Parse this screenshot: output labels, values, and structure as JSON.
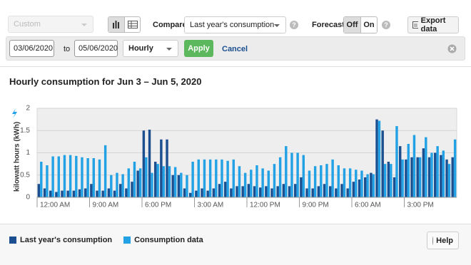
{
  "toolbar": {
    "range": "Custom",
    "compare_label": "Compare",
    "compare_value": "Last year's consumption",
    "compare_help": "?",
    "forecast_label": "Forecast",
    "forecast_off": "Off",
    "forecast_on": "On",
    "forecast_help": "?",
    "export": "Export data"
  },
  "filter": {
    "from": "03/06/2020",
    "to_label": "to",
    "to": "05/06/2020",
    "interval": "Hourly",
    "apply": "Apply",
    "cancel": "Cancel"
  },
  "help": "Help",
  "chart_data": {
    "type": "bar",
    "title": "Hourly consumption for Jun 3 – Jun 5, 2020",
    "y_label": "kilowatt hours (kWh)",
    "categories": [
      "12:00 AM",
      null,
      null,
      null,
      null,
      null,
      null,
      null,
      null,
      "9:00 AM",
      null,
      null,
      null,
      null,
      null,
      null,
      null,
      null,
      "6:00 PM",
      null,
      null,
      null,
      null,
      null,
      null,
      null,
      null,
      "3:00 AM",
      null,
      null,
      null,
      null,
      null,
      null,
      null,
      null,
      "12:00 PM",
      null,
      null,
      null,
      null,
      null,
      null,
      null,
      null,
      "9:00 PM",
      null,
      null,
      null,
      null,
      null,
      null,
      null,
      null,
      "6:00 AM",
      null,
      null,
      null,
      null,
      null,
      null,
      null,
      null,
      "3:00 PM",
      null,
      null,
      null,
      null,
      null,
      null,
      null,
      null
    ],
    "series": [
      {
        "name": "Last year's consumption",
        "color": "#1c4f8f",
        "values": [
          0.3,
          0.2,
          0.15,
          0.12,
          0.15,
          0.15,
          0.15,
          0.18,
          0.2,
          0.3,
          0.15,
          0.15,
          0.2,
          0.15,
          0.3,
          0.2,
          0.35,
          0.6,
          1.5,
          1.52,
          0.8,
          1.3,
          1.3,
          0.5,
          0.5,
          0.2,
          0.1,
          0.15,
          0.2,
          0.15,
          0.2,
          0.3,
          0.35,
          0.2,
          0.25,
          0.25,
          0.3,
          0.25,
          0.22,
          0.25,
          0.2,
          0.25,
          0.3,
          0.25,
          0.3,
          0.45,
          0.2,
          0.2,
          0.25,
          0.3,
          0.25,
          0.2,
          0.3,
          0.2,
          0.35,
          0.4,
          0.45,
          0.55,
          1.75,
          1.5,
          0.8,
          0.45,
          1.15,
          0.85,
          0.9,
          0.9,
          1.1,
          0.9,
          1.0,
          0.95,
          0.85,
          0.9
        ]
      },
      {
        "name": "Consumption data",
        "color": "#22a2e4",
        "values": [
          0.8,
          0.72,
          0.92,
          0.92,
          0.95,
          0.95,
          0.93,
          0.9,
          0.88,
          0.88,
          0.85,
          1.17,
          0.5,
          0.55,
          0.52,
          0.65,
          0.8,
          0.65,
          0.9,
          0.55,
          0.75,
          0.7,
          0.7,
          0.68,
          0.55,
          0.5,
          0.8,
          0.85,
          0.85,
          0.85,
          0.85,
          0.85,
          0.82,
          0.85,
          0.7,
          0.55,
          0.62,
          0.72,
          0.65,
          0.6,
          0.75,
          0.9,
          1.15,
          1.0,
          1.0,
          0.95,
          0.6,
          0.7,
          0.72,
          0.75,
          0.85,
          0.72,
          0.65,
          0.65,
          0.62,
          0.6,
          0.52,
          0.52,
          1.72,
          0.75,
          0.75,
          1.6,
          0.85,
          1.2,
          1.4,
          0.9,
          1.35,
          1.0,
          1.15,
          1.05,
          0.75,
          1.3
        ]
      }
    ],
    "ylim": [
      0,
      2
    ],
    "yticks": [
      0,
      0.5,
      1,
      1.5,
      2
    ],
    "grid": true
  }
}
